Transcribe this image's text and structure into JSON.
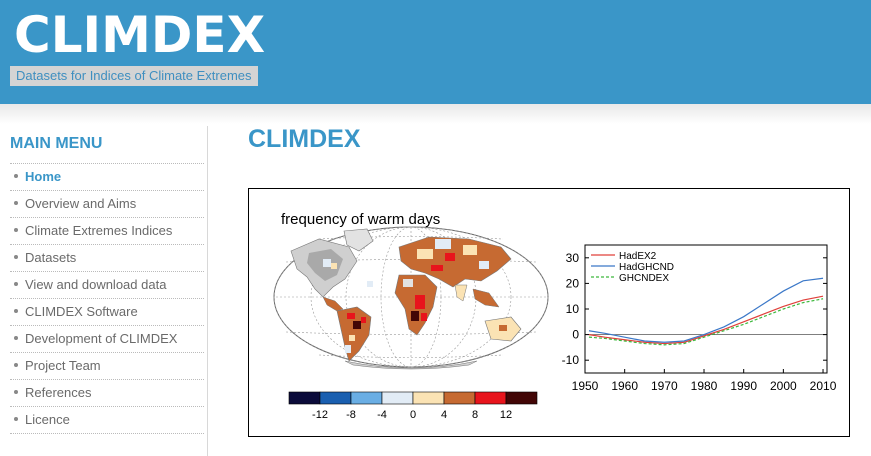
{
  "header": {
    "site_title": "CLIMDEX",
    "tagline": "Datasets for Indices of Climate Extremes",
    "bg_color": "#3a96c8"
  },
  "sidebar": {
    "title": "MAIN MENU",
    "items": [
      {
        "label": "Home",
        "active": true
      },
      {
        "label": "Overview and Aims"
      },
      {
        "label": "Climate Extremes Indices"
      },
      {
        "label": "Datasets"
      },
      {
        "label": "View and download data"
      },
      {
        "label": "CLIMDEX Software"
      },
      {
        "label": "Development of CLIMDEX"
      },
      {
        "label": "Project Team"
      },
      {
        "label": "References"
      },
      {
        "label": "Licence"
      }
    ]
  },
  "main": {
    "title": "CLIMDEX"
  },
  "figure": {
    "map_title": "frequency of warm days",
    "colorbar": {
      "colors": [
        "#0b0b3a",
        "#1a5fb0",
        "#6aaee4",
        "#e2ecf6",
        "#fbe3b4",
        "#c66a32",
        "#e8141c",
        "#420606"
      ],
      "labels": [
        "-12",
        "-8",
        "-4",
        "0",
        "4",
        "8",
        "12"
      ]
    }
  },
  "chart_data": {
    "type": "line",
    "title": "",
    "xlabel": "",
    "ylabel": "",
    "xlim": [
      1950,
      2011
    ],
    "ylim": [
      -15,
      35
    ],
    "x_ticks": [
      1950,
      1960,
      1970,
      1980,
      1990,
      2000,
      2010
    ],
    "y_ticks": [
      30,
      20,
      10,
      0,
      -10
    ],
    "legend_position": "top-left",
    "series": [
      {
        "name": "HadEX2",
        "color": "#e0403a",
        "style": "solid",
        "x": [
          1951,
          1955,
          1960,
          1965,
          1970,
          1975,
          1980,
          1985,
          1990,
          1995,
          2000,
          2005,
          2010
        ],
        "y": [
          0,
          -1,
          -2,
          -3,
          -3.5,
          -3,
          -0.5,
          2,
          5,
          8,
          11,
          13.5,
          15
        ]
      },
      {
        "name": "HadGHCND",
        "color": "#3b78c8",
        "style": "solid",
        "x": [
          1951,
          1955,
          1960,
          1965,
          1970,
          1975,
          1980,
          1985,
          1990,
          1995,
          2000,
          2005,
          2010
        ],
        "y": [
          1.5,
          0.5,
          -1,
          -2.5,
          -3,
          -2.5,
          0,
          3,
          7,
          12,
          17,
          21,
          22
        ]
      },
      {
        "name": "GHCNDEX",
        "color": "#3cb83c",
        "style": "dashed",
        "x": [
          1951,
          1955,
          1960,
          1965,
          1970,
          1975,
          1980,
          1985,
          1990,
          1995,
          2000,
          2005,
          2010
        ],
        "y": [
          -1,
          -1.5,
          -2.5,
          -3.5,
          -4,
          -3.5,
          -1,
          1.5,
          4,
          7,
          10,
          12.5,
          14
        ]
      }
    ]
  }
}
